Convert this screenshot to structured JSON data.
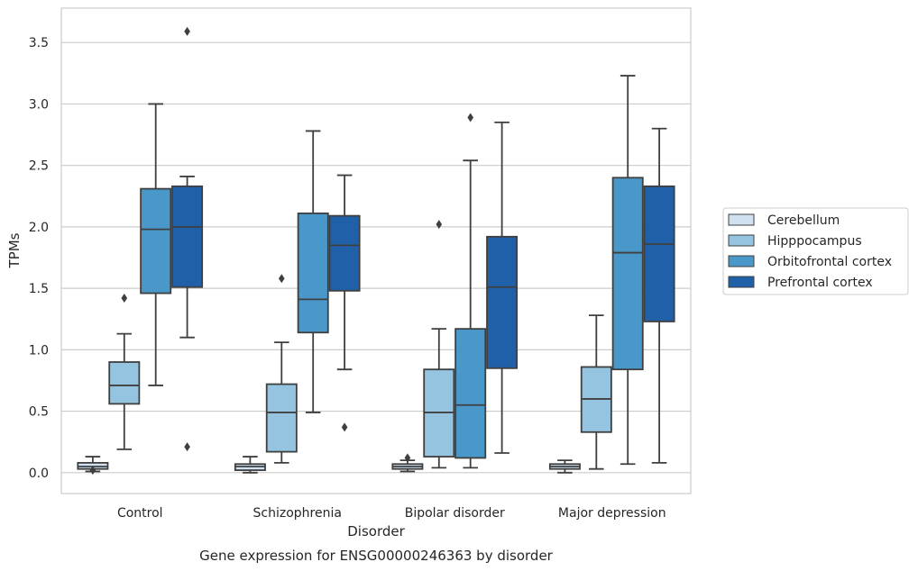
{
  "chart_data": {
    "type": "box",
    "title": "Gene expression for ENSG00000246363 by disorder",
    "xlabel": "Disorder",
    "ylabel": "TPMs",
    "ylim": [
      -0.17,
      3.78
    ],
    "yticks": [
      "0.0",
      "0.5",
      "1.0",
      "1.5",
      "2.0",
      "2.5",
      "3.0",
      "3.5"
    ],
    "grid": "horizontal",
    "legend_position": "right",
    "categories": [
      "Control",
      "Schizophrenia",
      "Bipolar disorder",
      "Major depression"
    ],
    "series": [
      {
        "name": "Cerebellum",
        "color": "#d0e2f2",
        "boxes": [
          {
            "whisker_low": 0.01,
            "q1": 0.03,
            "median": 0.05,
            "q3": 0.08,
            "whisker_high": 0.13,
            "outliers": [
              0.02
            ]
          },
          {
            "whisker_low": 0.0,
            "q1": 0.02,
            "median": 0.05,
            "q3": 0.07,
            "whisker_high": 0.13,
            "outliers": []
          },
          {
            "whisker_low": 0.01,
            "q1": 0.03,
            "median": 0.05,
            "q3": 0.07,
            "whisker_high": 0.1,
            "outliers": [
              0.12
            ]
          },
          {
            "whisker_low": 0.0,
            "q1": 0.03,
            "median": 0.05,
            "q3": 0.07,
            "whisker_high": 0.1,
            "outliers": []
          }
        ]
      },
      {
        "name": "Hipppocampus",
        "color": "#94c4df",
        "boxes": [
          {
            "whisker_low": 0.19,
            "q1": 0.56,
            "median": 0.71,
            "q3": 0.9,
            "whisker_high": 1.13,
            "outliers": [
              1.42
            ]
          },
          {
            "whisker_low": 0.08,
            "q1": 0.17,
            "median": 0.49,
            "q3": 0.72,
            "whisker_high": 1.06,
            "outliers": [
              1.58
            ]
          },
          {
            "whisker_low": 0.04,
            "q1": 0.13,
            "median": 0.49,
            "q3": 0.84,
            "whisker_high": 1.17,
            "outliers": [
              2.02
            ]
          },
          {
            "whisker_low": 0.03,
            "q1": 0.33,
            "median": 0.6,
            "q3": 0.86,
            "whisker_high": 1.28,
            "outliers": []
          }
        ]
      },
      {
        "name": "Orbitofrontal cortex",
        "color": "#4a98c9",
        "boxes": [
          {
            "whisker_low": 0.71,
            "q1": 1.46,
            "median": 1.98,
            "q3": 2.31,
            "whisker_high": 3.0,
            "outliers": []
          },
          {
            "whisker_low": 0.49,
            "q1": 1.14,
            "median": 1.41,
            "q3": 2.11,
            "whisker_high": 2.78,
            "outliers": []
          },
          {
            "whisker_low": 0.04,
            "q1": 0.12,
            "median": 0.55,
            "q3": 1.17,
            "whisker_high": 2.54,
            "outliers": [
              2.89
            ]
          },
          {
            "whisker_low": 0.07,
            "q1": 0.84,
            "median": 1.79,
            "q3": 2.4,
            "whisker_high": 3.23,
            "outliers": []
          }
        ]
      },
      {
        "name": "Prefrontal cortex",
        "color": "#2060a8",
        "boxes": [
          {
            "whisker_low": 1.1,
            "q1": 1.51,
            "median": 2.0,
            "q3": 2.33,
            "whisker_high": 2.41,
            "outliers": [
              0.21,
              3.59
            ]
          },
          {
            "whisker_low": 0.84,
            "q1": 1.48,
            "median": 1.85,
            "q3": 2.09,
            "whisker_high": 2.42,
            "outliers": [
              0.37
            ]
          },
          {
            "whisker_low": 0.16,
            "q1": 0.85,
            "median": 1.51,
            "q3": 1.92,
            "whisker_high": 2.85,
            "outliers": []
          },
          {
            "whisker_low": 0.08,
            "q1": 1.23,
            "median": 1.86,
            "q3": 2.33,
            "whisker_high": 2.8,
            "outliers": []
          }
        ]
      }
    ]
  }
}
